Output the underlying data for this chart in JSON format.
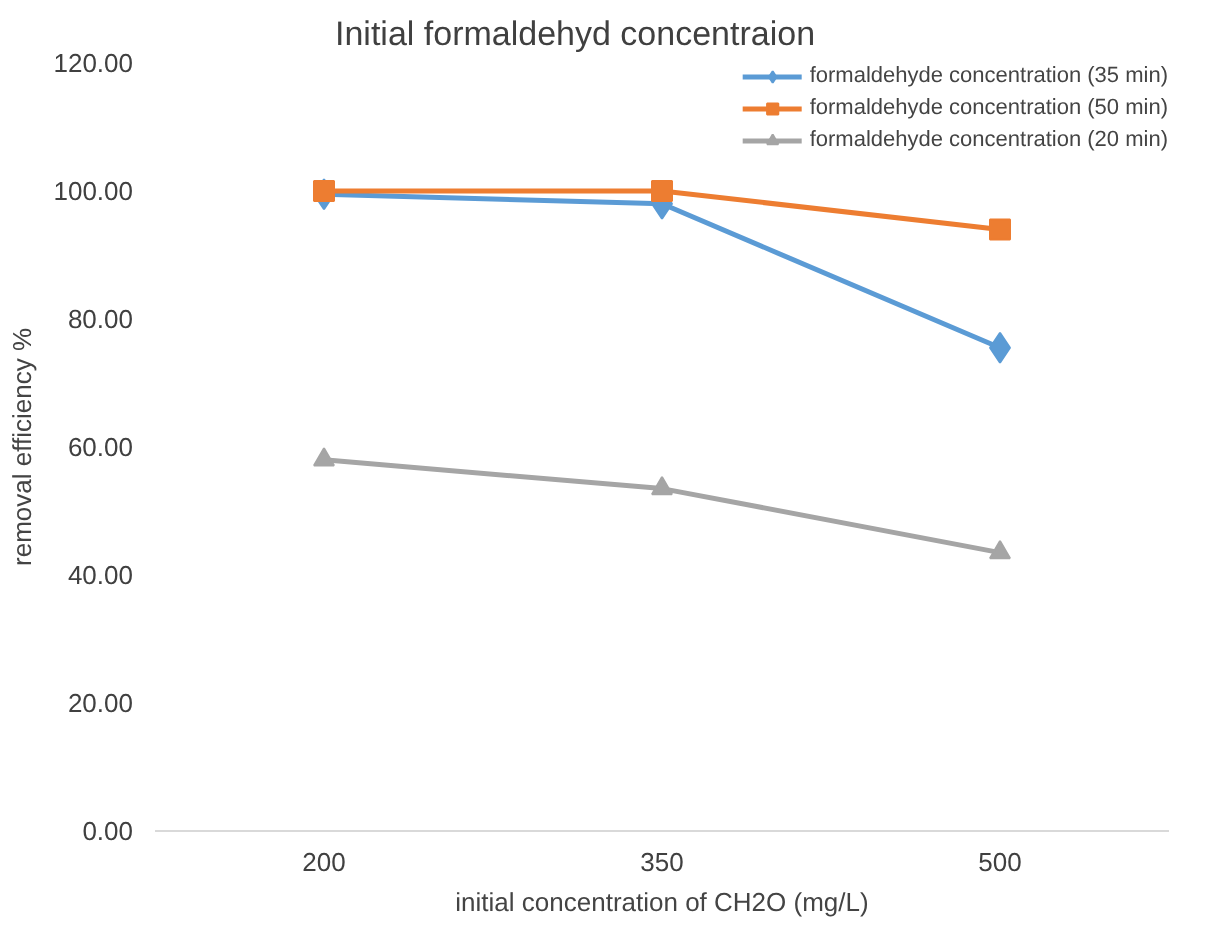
{
  "chart_data": {
    "type": "line",
    "title": "Initial formaldehyd concentraion",
    "xlabel": "initial concentration of CH2O (mg/L)",
    "ylabel": "removal efficiency %",
    "categories": [
      "200",
      "350",
      "500"
    ],
    "series": [
      {
        "name": "formaldehyde concentration (35 min)",
        "color": "#5b9bd5",
        "marker": "diamond",
        "values": [
          99.5,
          98,
          75.5
        ]
      },
      {
        "name": "formaldehyde concentration (50 min)",
        "color": "#ed7d31",
        "marker": "square",
        "values": [
          100,
          100,
          94
        ]
      },
      {
        "name": "formaldehyde concentration (20 min)",
        "color": "#a5a5a5",
        "marker": "triangle",
        "values": [
          58,
          53.5,
          43.5
        ]
      }
    ],
    "ylim": [
      0,
      120
    ],
    "yticks": [
      {
        "value": 0,
        "label": "0.00"
      },
      {
        "value": 20,
        "label": "20.00"
      },
      {
        "value": 40,
        "label": "40.00"
      },
      {
        "value": 60,
        "label": "60.00"
      },
      {
        "value": 80,
        "label": "80.00"
      },
      {
        "value": 100,
        "label": "100.00"
      },
      {
        "value": 120,
        "label": "120.00"
      }
    ],
    "grid": false,
    "legend": "top right",
    "line_style": "solid"
  }
}
